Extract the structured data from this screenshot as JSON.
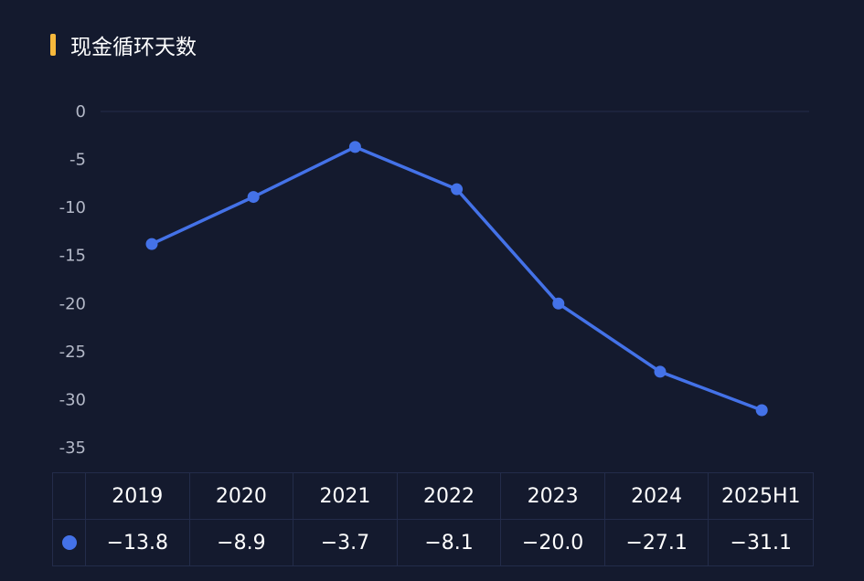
{
  "title": "现金循环天数",
  "colors": {
    "accent": "#f7b93c",
    "line": "#4472e8",
    "background": "#141a2e",
    "grid": "#232c4a"
  },
  "chart_data": {
    "type": "line",
    "categories": [
      "2019",
      "2020",
      "2021",
      "2022",
      "2023",
      "2024",
      "2025H1"
    ],
    "series": [
      {
        "values": [
          -13.8,
          -8.9,
          -3.7,
          -8.1,
          -20.0,
          -27.1,
          -31.1
        ]
      }
    ],
    "ylim": [
      -35,
      0
    ],
    "yticks": [
      "0",
      "-5",
      "-10",
      "-15",
      "-20",
      "-25",
      "-30",
      "-35"
    ],
    "grid": false,
    "legend": "table"
  },
  "table": {
    "headers": [
      "2019",
      "2020",
      "2021",
      "2022",
      "2023",
      "2024",
      "2025H1"
    ],
    "values": [
      "−13.8",
      "−8.9",
      "−3.7",
      "−8.1",
      "−20.0",
      "−27.1",
      "−31.1"
    ]
  }
}
